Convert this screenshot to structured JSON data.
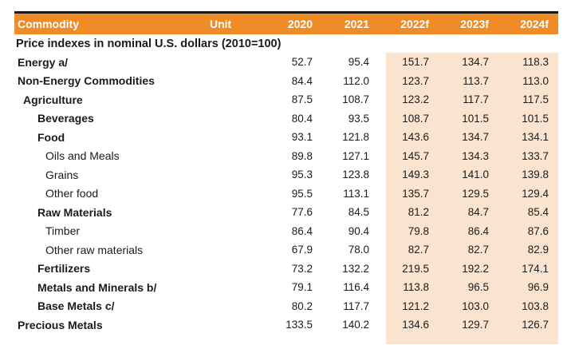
{
  "table": {
    "title": "Price indexes in nominal U.S. dollars (2010=100)",
    "columns": [
      "Commodity",
      "Unit",
      "2020",
      "2021",
      "2022f",
      "2023f",
      "2024f"
    ],
    "rows": [
      {
        "label": "Energy a/",
        "indent": 0,
        "bold": true,
        "unit": "",
        "values": [
          "52.7",
          "95.4",
          "151.7",
          "134.7",
          "118.3"
        ]
      },
      {
        "label": "Non-Energy Commodities",
        "indent": 0,
        "bold": true,
        "unit": "",
        "values": [
          "84.4",
          "112.0",
          "123.7",
          "113.7",
          "113.0"
        ]
      },
      {
        "label": "Agriculture",
        "indent": 1,
        "bold": true,
        "unit": "",
        "values": [
          "87.5",
          "108.7",
          "123.2",
          "117.7",
          "117.5"
        ]
      },
      {
        "label": "Beverages",
        "indent": 2,
        "bold": true,
        "unit": "",
        "values": [
          "80.4",
          "93.5",
          "108.7",
          "101.5",
          "101.5"
        ]
      },
      {
        "label": "Food",
        "indent": 2,
        "bold": true,
        "unit": "",
        "values": [
          "93.1",
          "121.8",
          "143.6",
          "134.7",
          "134.1"
        ]
      },
      {
        "label": "Oils and Meals",
        "indent": 3,
        "bold": false,
        "unit": "",
        "values": [
          "89.8",
          "127.1",
          "145.7",
          "134.3",
          "133.7"
        ]
      },
      {
        "label": "Grains",
        "indent": 3,
        "bold": false,
        "unit": "",
        "values": [
          "95.3",
          "123.8",
          "149.3",
          "141.0",
          "139.8"
        ]
      },
      {
        "label": "Other food",
        "indent": 3,
        "bold": false,
        "unit": "",
        "values": [
          "95.5",
          "113.1",
          "135.7",
          "129.5",
          "129.4"
        ]
      },
      {
        "label": "Raw Materials",
        "indent": 2,
        "bold": true,
        "unit": "",
        "values": [
          "77.6",
          "84.5",
          "81.2",
          "84.7",
          "85.4"
        ]
      },
      {
        "label": "Timber",
        "indent": 3,
        "bold": false,
        "unit": "",
        "values": [
          "86.4",
          "90.4",
          "79.8",
          "86.4",
          "87.6"
        ]
      },
      {
        "label": "Other raw materials",
        "indent": 3,
        "bold": false,
        "unit": "",
        "values": [
          "67.9",
          "78.0",
          "82.7",
          "82.7",
          "82.9"
        ]
      },
      {
        "label": "Fertilizers",
        "indent": 2,
        "bold": true,
        "unit": "",
        "values": [
          "73.2",
          "132.2",
          "219.5",
          "192.2",
          "174.1"
        ]
      },
      {
        "label": "Metals and Minerals b/",
        "indent": 2,
        "bold": true,
        "unit": "",
        "values": [
          "79.1",
          "116.4",
          "113.8",
          "96.5",
          "96.9"
        ]
      },
      {
        "label": "Base Metals c/",
        "indent": 2,
        "bold": true,
        "unit": "",
        "values": [
          "80.2",
          "117.7",
          "121.2",
          "103.0",
          "103.8"
        ]
      },
      {
        "label": "Precious Metals",
        "indent": 0,
        "bold": true,
        "unit": "",
        "values": [
          "133.5",
          "140.2",
          "134.6",
          "129.7",
          "126.7"
        ]
      }
    ]
  },
  "colors": {
    "header_bg": "#EF8C28",
    "header_text": "#FFFFFF",
    "forecast_bg": "#FBE4CF",
    "top_bar": "#1A1A1A",
    "body_text": "#1B1B1B"
  }
}
